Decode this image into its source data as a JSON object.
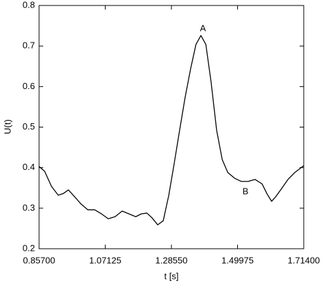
{
  "chart_data": {
    "type": "line",
    "xlabel": "t [s]",
    "ylabel": "U(t)",
    "x": [
      0.857,
      0.875,
      0.897,
      0.919,
      0.935,
      0.952,
      0.97,
      0.992,
      1.015,
      1.037,
      1.059,
      1.081,
      1.103,
      1.126,
      1.148,
      1.17,
      1.188,
      1.206,
      1.223,
      1.241,
      1.259,
      1.277,
      1.294,
      1.312,
      1.33,
      1.348,
      1.365,
      1.381,
      1.397,
      1.414,
      1.432,
      1.45,
      1.468,
      1.49,
      1.512,
      1.534,
      1.556,
      1.579,
      1.596,
      1.61,
      1.623,
      1.641,
      1.663,
      1.685,
      1.714
    ],
    "series": [
      {
        "color": "#000000",
        "values": [
          0.403,
          0.391,
          0.354,
          0.332,
          0.336,
          0.345,
          0.33,
          0.311,
          0.296,
          0.296,
          0.286,
          0.274,
          0.279,
          0.293,
          0.286,
          0.279,
          0.286,
          0.288,
          0.276,
          0.259,
          0.269,
          0.332,
          0.408,
          0.492,
          0.574,
          0.645,
          0.704,
          0.726,
          0.704,
          0.611,
          0.492,
          0.42,
          0.388,
          0.374,
          0.366,
          0.366,
          0.371,
          0.36,
          0.334,
          0.317,
          0.328,
          0.347,
          0.371,
          0.388,
          0.405
        ]
      }
    ],
    "annotations": [
      "A",
      "B"
    ],
    "xlim": [
      0.857,
      1.714
    ],
    "xticks": [
      {
        "value": 0.857,
        "label": "0.85700"
      },
      {
        "value": 1.07125,
        "label": "1.07125"
      },
      {
        "value": 1.2855,
        "label": "1.28550"
      },
      {
        "value": 1.49975,
        "label": "1.49975"
      },
      {
        "value": 1.714,
        "label": "1.71400"
      }
    ],
    "ylim": [
      0.2,
      0.8
    ],
    "yticks": [
      0.2,
      0.3,
      0.4,
      0.5,
      0.6,
      0.7,
      0.8
    ],
    "grid": false
  }
}
